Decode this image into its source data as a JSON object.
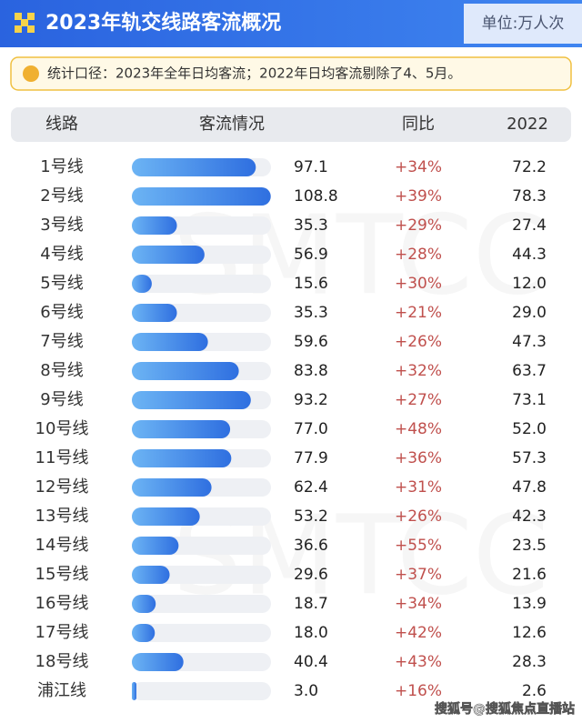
{
  "chart_data": {
    "type": "bar",
    "title": "2023年轨交线路客流概况",
    "unit": "单位:万人次",
    "note": "统计口径：2023年全年日均客流；2022年日均客流剔除了4、5月。",
    "columns": [
      "线路",
      "客流情况",
      "同比",
      "2022"
    ],
    "watermark": "SMTCC",
    "footer": "搜狐号@搜狐焦点直播站",
    "color": "#3a7fe6",
    "xlim": [
      0,
      109
    ],
    "categories": [
      "1号线",
      "2号线",
      "3号线",
      "4号线",
      "5号线",
      "6号线",
      "7号线",
      "8号线",
      "9号线",
      "10号线",
      "11号线",
      "12号线",
      "13号线",
      "14号线",
      "15号线",
      "16号线",
      "17号线",
      "18号线",
      "浦江线"
    ],
    "values": [
      97.1,
      108.8,
      35.3,
      56.9,
      15.6,
      35.3,
      59.6,
      83.8,
      93.2,
      77.0,
      77.9,
      62.4,
      53.2,
      36.6,
      29.6,
      18.7,
      18.0,
      40.4,
      3.0
    ],
    "value_labels": [
      "97.1",
      "108.8",
      "35.3",
      "56.9",
      "15.6",
      "35.3",
      "59.6",
      "83.8",
      "93.2",
      "77.0",
      "77.9",
      "62.4",
      "53.2",
      "36.6",
      "29.6",
      "18.7",
      "18.0",
      "40.4",
      "3.0"
    ],
    "yoy": [
      34,
      39,
      29,
      28,
      30,
      21,
      26,
      32,
      27,
      48,
      36,
      31,
      26,
      55,
      37,
      34,
      42,
      43,
      16
    ],
    "yoy_labels": [
      "+34%",
      "+39%",
      "+29%",
      "+28%",
      "+30%",
      "+21%",
      "+26%",
      "+32%",
      "+27%",
      "+48%",
      "+36%",
      "+31%",
      "+26%",
      "+55%",
      "+37%",
      "+34%",
      "+42%",
      "+43%",
      "+16%"
    ],
    "values_2022": [
      72.2,
      78.3,
      27.4,
      44.3,
      12.0,
      29.0,
      47.3,
      63.7,
      73.1,
      52.0,
      57.3,
      47.8,
      42.3,
      23.5,
      21.6,
      13.9,
      12.6,
      28.3,
      2.6
    ],
    "labels_2022": [
      "72.2",
      "78.3",
      "27.4",
      "44.3",
      "12.0",
      "29.0",
      "47.3",
      "63.7",
      "73.1",
      "52.0",
      "57.3",
      "47.8",
      "42.3",
      "23.5",
      "21.6",
      "13.9",
      "12.6",
      "28.3",
      "2.6"
    ]
  }
}
